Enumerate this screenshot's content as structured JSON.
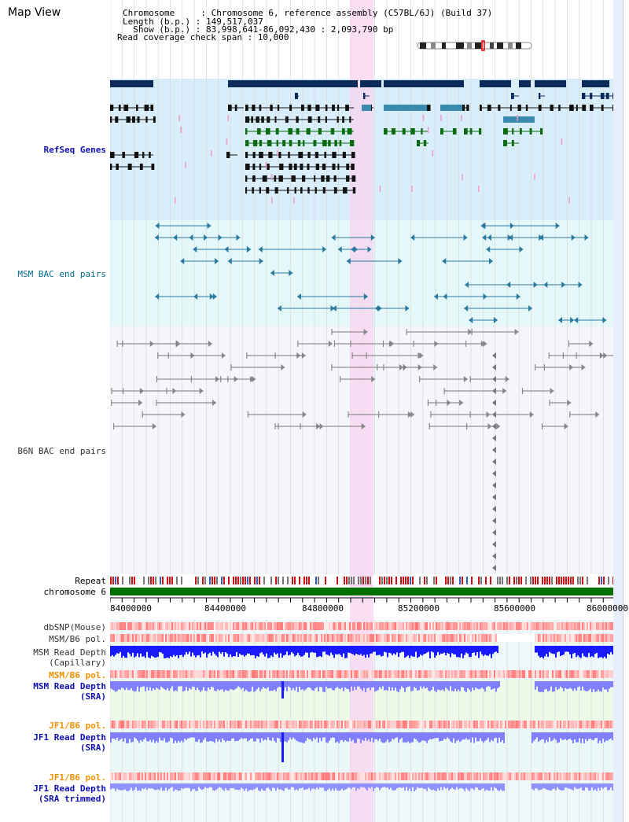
{
  "view_title": "Map View",
  "info": {
    "chromosome_line": "Chromosome     : Chromosome 6, reference assembly (C57BL/6J) (Build 37)",
    "length_line": "Length (b.p.) : 149,517,037",
    "show_line": "  Show (b.p.) : 83,998,641-86,092,430 : 2,093,790 bp",
    "span_line": "Read coverage check span : 10,000"
  },
  "tracks": {
    "refseq": "RefSeq Genes",
    "msm_bac": "MSM BAC end pairs",
    "b6n_bac": "B6N BAC end pairs",
    "repeat": "Repeat",
    "chromosome": "chromosome 6",
    "dbsnp": "dbSNP(Mouse)",
    "msm_b6_pol": "MSM/B6 pol.",
    "msm_read_depth_cap": "MSM Read Depth\n(Capillary)",
    "msm_b6_pol_sra": "MSM/B6 pol.",
    "msm_read_depth_sra": "MSM Read Depth\n(SRA)",
    "jf1_b6_pol": "JF1/B6 pol.",
    "jf1_read_depth_sra": "JF1 Read Depth\n(SRA)",
    "jf1_b6_pol_trim": "JF1/B6 pol.",
    "jf1_read_depth_trim": "JF1 Read Depth\n(SRA trimmed)"
  },
  "axis_ticks": [
    "84000000",
    "84400000",
    "84800000",
    "85200000",
    "85600000",
    "86000000"
  ],
  "colors": {
    "refseq_bg": "#d8eefa",
    "msm_bg": "#e4f8fa",
    "b6n_bg": "#f4f6fb",
    "highlight": "#f8d4f0",
    "navy": "#0a2a5a",
    "teal": "#3a8ab0",
    "green": "#0a6a10",
    "chromosome": "#007000",
    "depth_blue": "#1a1aff",
    "depth_light": "#8080ff"
  }
}
